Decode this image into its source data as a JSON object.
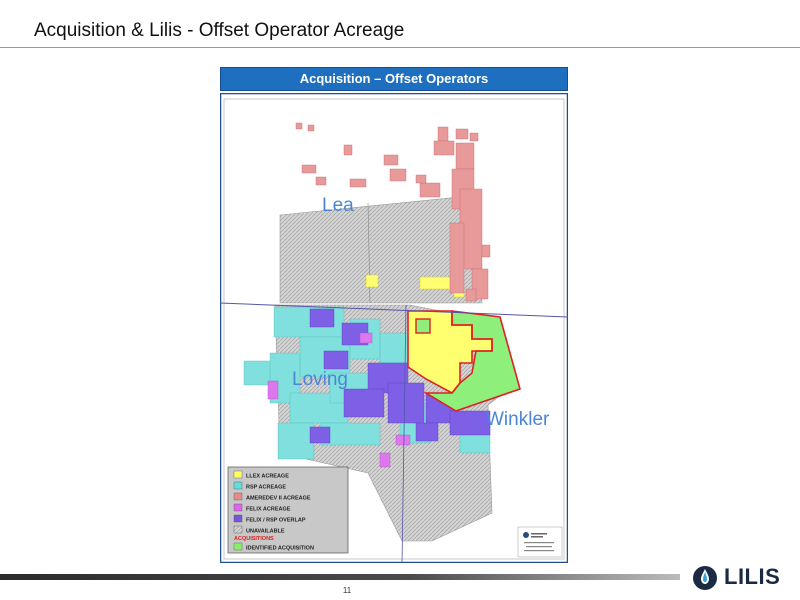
{
  "slide": {
    "title": "Acquisition & Lilis - Offset Operator Acreage",
    "page_number": "11"
  },
  "banner": {
    "title": "Acquisition – Offset Operators"
  },
  "map": {
    "county_labels": {
      "lea": "Lea",
      "loving": "Loving",
      "winkler": "Winkler"
    },
    "legend": {
      "items": [
        {
          "label": "LLEX ACREAGE",
          "color": "#ffff66"
        },
        {
          "label": "RSP ACREAGE",
          "color": "#66dddd"
        },
        {
          "label": "AMEREDEV II ACREAGE",
          "color": "#e88a8a"
        },
        {
          "label": "FELIX ACREAGE",
          "color": "#dd66ee"
        },
        {
          "label": "FELIX / RSP OVERLAP",
          "color": "#7a55e0"
        },
        {
          "label": "UNAVAILABLE",
          "color": "#cccccc"
        }
      ],
      "acquisitions_heading": "ACQUISITIONS",
      "acquisition_item": {
        "label": "IDENTIFIED ACQUISITION",
        "color": "#88ee66"
      }
    },
    "colors": {
      "unavailable": "#d2d2d2",
      "rsp": "#7fe0dd",
      "ameredev": "#e89a9a",
      "felix": "#dd77ee",
      "overlap": "#7e60e6",
      "llex": "#ffff70",
      "acquisition": "#8ef07a",
      "outline": "#dd2222"
    }
  },
  "logo": {
    "text": "LILIS"
  }
}
